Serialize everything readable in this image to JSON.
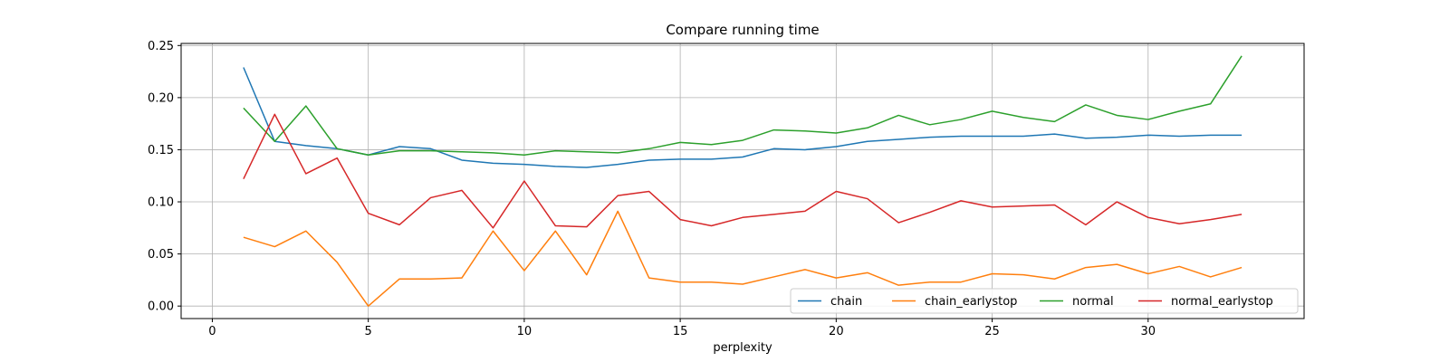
{
  "chart_data": {
    "type": "line",
    "title": "Compare running time",
    "xlabel": "perplexity",
    "ylabel": "",
    "xlim": [
      -1,
      35
    ],
    "ylim": [
      -0.012,
      0.252
    ],
    "xticks": [
      0,
      5,
      10,
      15,
      20,
      25,
      30
    ],
    "yticks": [
      0.0,
      0.05,
      0.1,
      0.15,
      0.2,
      0.25
    ],
    "ytick_labels": [
      "0.00",
      "0.05",
      "0.10",
      "0.15",
      "0.20",
      "0.25"
    ],
    "grid": true,
    "legend": {
      "placement": "lower-right",
      "columns": 4
    },
    "x": [
      1,
      2,
      3,
      4,
      5,
      6,
      7,
      8,
      9,
      10,
      11,
      12,
      13,
      14,
      15,
      16,
      17,
      18,
      19,
      20,
      21,
      22,
      23,
      24,
      25,
      26,
      27,
      28,
      29,
      30,
      31,
      32,
      33
    ],
    "series": [
      {
        "name": "chain",
        "color": "#1f77b4",
        "values": [
          0.229,
          0.158,
          0.154,
          0.151,
          0.145,
          0.153,
          0.151,
          0.14,
          0.137,
          0.136,
          0.134,
          0.133,
          0.136,
          0.14,
          0.141,
          0.141,
          0.143,
          0.151,
          0.15,
          0.153,
          0.158,
          0.16,
          0.162,
          0.163,
          0.163,
          0.163,
          0.165,
          0.161,
          0.162,
          0.164,
          0.163,
          0.164,
          0.164
        ]
      },
      {
        "name": "chain_earlystop",
        "color": "#ff7f0e",
        "values": [
          0.066,
          0.057,
          0.072,
          0.042,
          0.0,
          0.026,
          0.026,
          0.027,
          0.072,
          0.034,
          0.072,
          0.03,
          0.091,
          0.027,
          0.023,
          0.023,
          0.021,
          0.028,
          0.035,
          0.027,
          0.032,
          0.02,
          0.023,
          0.023,
          0.031,
          0.03,
          0.026,
          0.037,
          0.04,
          0.031,
          0.038,
          0.028,
          0.037
        ]
      },
      {
        "name": "normal",
        "color": "#2ca02c",
        "values": [
          0.19,
          0.158,
          0.192,
          0.151,
          0.145,
          0.149,
          0.149,
          0.148,
          0.147,
          0.145,
          0.149,
          0.148,
          0.147,
          0.151,
          0.157,
          0.155,
          0.159,
          0.169,
          0.168,
          0.166,
          0.171,
          0.183,
          0.174,
          0.179,
          0.187,
          0.181,
          0.177,
          0.193,
          0.183,
          0.179,
          0.187,
          0.194,
          0.24
        ]
      },
      {
        "name": "normal_earlystop",
        "color": "#d62728",
        "values": [
          0.122,
          0.184,
          0.127,
          0.142,
          0.089,
          0.078,
          0.104,
          0.111,
          0.075,
          0.12,
          0.077,
          0.076,
          0.106,
          0.11,
          0.083,
          0.077,
          0.085,
          0.088,
          0.091,
          0.11,
          0.103,
          0.08,
          0.09,
          0.101,
          0.095,
          0.096,
          0.097,
          0.078,
          0.1,
          0.085,
          0.079,
          0.083,
          0.088
        ]
      }
    ]
  }
}
